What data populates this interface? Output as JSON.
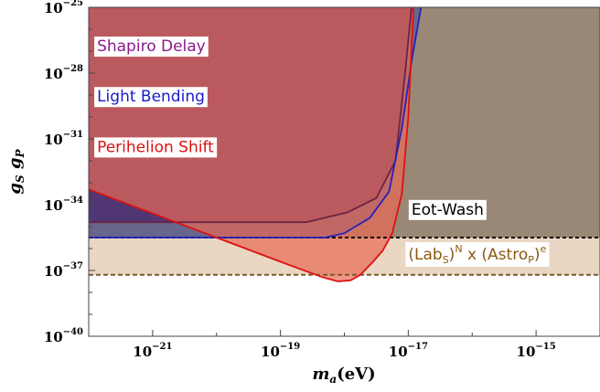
{
  "chart_data": {
    "type": "area",
    "xlabel": {
      "main": "m",
      "sub": "a",
      "unit": "(eV)"
    },
    "ylabel": {
      "parts": [
        {
          "main": "g",
          "sub": "S"
        },
        {
          "main": "g",
          "sub": "P"
        }
      ]
    },
    "x_scale": "log",
    "y_scale": "log",
    "xlim_exp": [
      -22.0,
      -14.0
    ],
    "ylim_exp": [
      -40,
      -25
    ],
    "x_ticks": [
      {
        "base": "10",
        "exp": "−21",
        "value_exp": -21
      },
      {
        "base": "10",
        "exp": "−19",
        "value_exp": -19
      },
      {
        "base": "10",
        "exp": "−17",
        "value_exp": -17
      },
      {
        "base": "10",
        "exp": "−15",
        "value_exp": -15
      }
    ],
    "y_ticks": [
      {
        "base": "10",
        "exp": "−25",
        "value_exp": -25
      },
      {
        "base": "10",
        "exp": "−28",
        "value_exp": -28
      },
      {
        "base": "10",
        "exp": "−31",
        "value_exp": -31
      },
      {
        "base": "10",
        "exp": "−34",
        "value_exp": -34
      },
      {
        "base": "10",
        "exp": "−37",
        "value_exp": -37
      },
      {
        "base": "10",
        "exp": "−40",
        "value_exp": -40
      }
    ],
    "regions": [
      {
        "name": "Shapiro Delay",
        "fill": "#6b2444",
        "fill_opacity": 0.88,
        "stroke": "#6b2444",
        "boundary": [
          [
            -22.0,
            -34.8
          ],
          [
            -19.0,
            -34.8
          ],
          [
            -18.6,
            -34.8
          ],
          [
            -17.95,
            -34.35
          ],
          [
            -17.5,
            -33.7
          ],
          [
            -17.2,
            -32.0
          ],
          [
            -17.05,
            -28.0
          ],
          [
            -16.95,
            -25.0
          ]
        ]
      },
      {
        "name": "Light Bending",
        "fill": "#2a3fa8",
        "fill_opacity": 0.45,
        "stroke": "#2222bb",
        "boundary": [
          [
            -22.0,
            -35.5
          ],
          [
            -18.3,
            -35.5
          ],
          [
            -18.0,
            -35.3
          ],
          [
            -17.6,
            -34.6
          ],
          [
            -17.3,
            -33.4
          ],
          [
            -17.1,
            -30.5
          ],
          [
            -16.95,
            -27.5
          ],
          [
            -16.8,
            -25.0
          ]
        ]
      },
      {
        "name": "Perihelion Shift",
        "fill": "#e86a55",
        "fill_opacity": 0.7,
        "stroke": "#dd1111",
        "boundary": [
          [
            -22.0,
            -33.3
          ],
          [
            -21.0,
            -34.4
          ],
          [
            -20.0,
            -35.5
          ],
          [
            -19.0,
            -36.6
          ],
          [
            -18.35,
            -37.3
          ],
          [
            -18.1,
            -37.5
          ],
          [
            -17.9,
            -37.45
          ],
          [
            -17.75,
            -37.2
          ],
          [
            -17.55,
            -36.6
          ],
          [
            -17.4,
            -36.1
          ],
          [
            -17.25,
            -35.3
          ],
          [
            -17.1,
            -33.5
          ],
          [
            -17.0,
            -30.0
          ],
          [
            -16.92,
            -25.0
          ]
        ]
      },
      {
        "name": "Eot-Wash",
        "fill": "#8c7a6a",
        "fill_opacity": 0.85,
        "stroke": "#000000",
        "boundary": [
          [
            -22.0,
            -35.5
          ],
          [
            -14.0,
            -35.5
          ]
        ]
      },
      {
        "name": "(Lab_S)^N x (Astro_P)^e",
        "fill": "#e9d6c3",
        "fill_opacity": 1.0,
        "stroke": "#7a5a2a",
        "boundary": [
          [
            -22.0,
            -37.2
          ],
          [
            -14.0,
            -37.2
          ]
        ]
      }
    ],
    "labels": [
      {
        "text": "Shapiro Delay",
        "color": "#8b1a8b",
        "at": [
          -21.87,
          -27.0
        ]
      },
      {
        "text": "Light Bending",
        "color": "#1a1acc",
        "at": [
          -21.87,
          -29.3
        ]
      },
      {
        "text": "Perihelion Shift",
        "color": "#dd1111",
        "at": [
          -21.87,
          -31.6
        ]
      },
      {
        "text": "Eot-Wash",
        "color": "#000000",
        "at": [
          -16.95,
          -34.45
        ]
      },
      {
        "text_parts": {
          "open1": "(Lab",
          "sub1": "S",
          "close1": ")",
          "sup1": "N",
          "mid": " x (Astro",
          "sub2": "P",
          "close2": ")",
          "sup2": "e"
        },
        "color": "#8b5a10",
        "at": [
          -17.0,
          -36.5
        ]
      }
    ]
  }
}
